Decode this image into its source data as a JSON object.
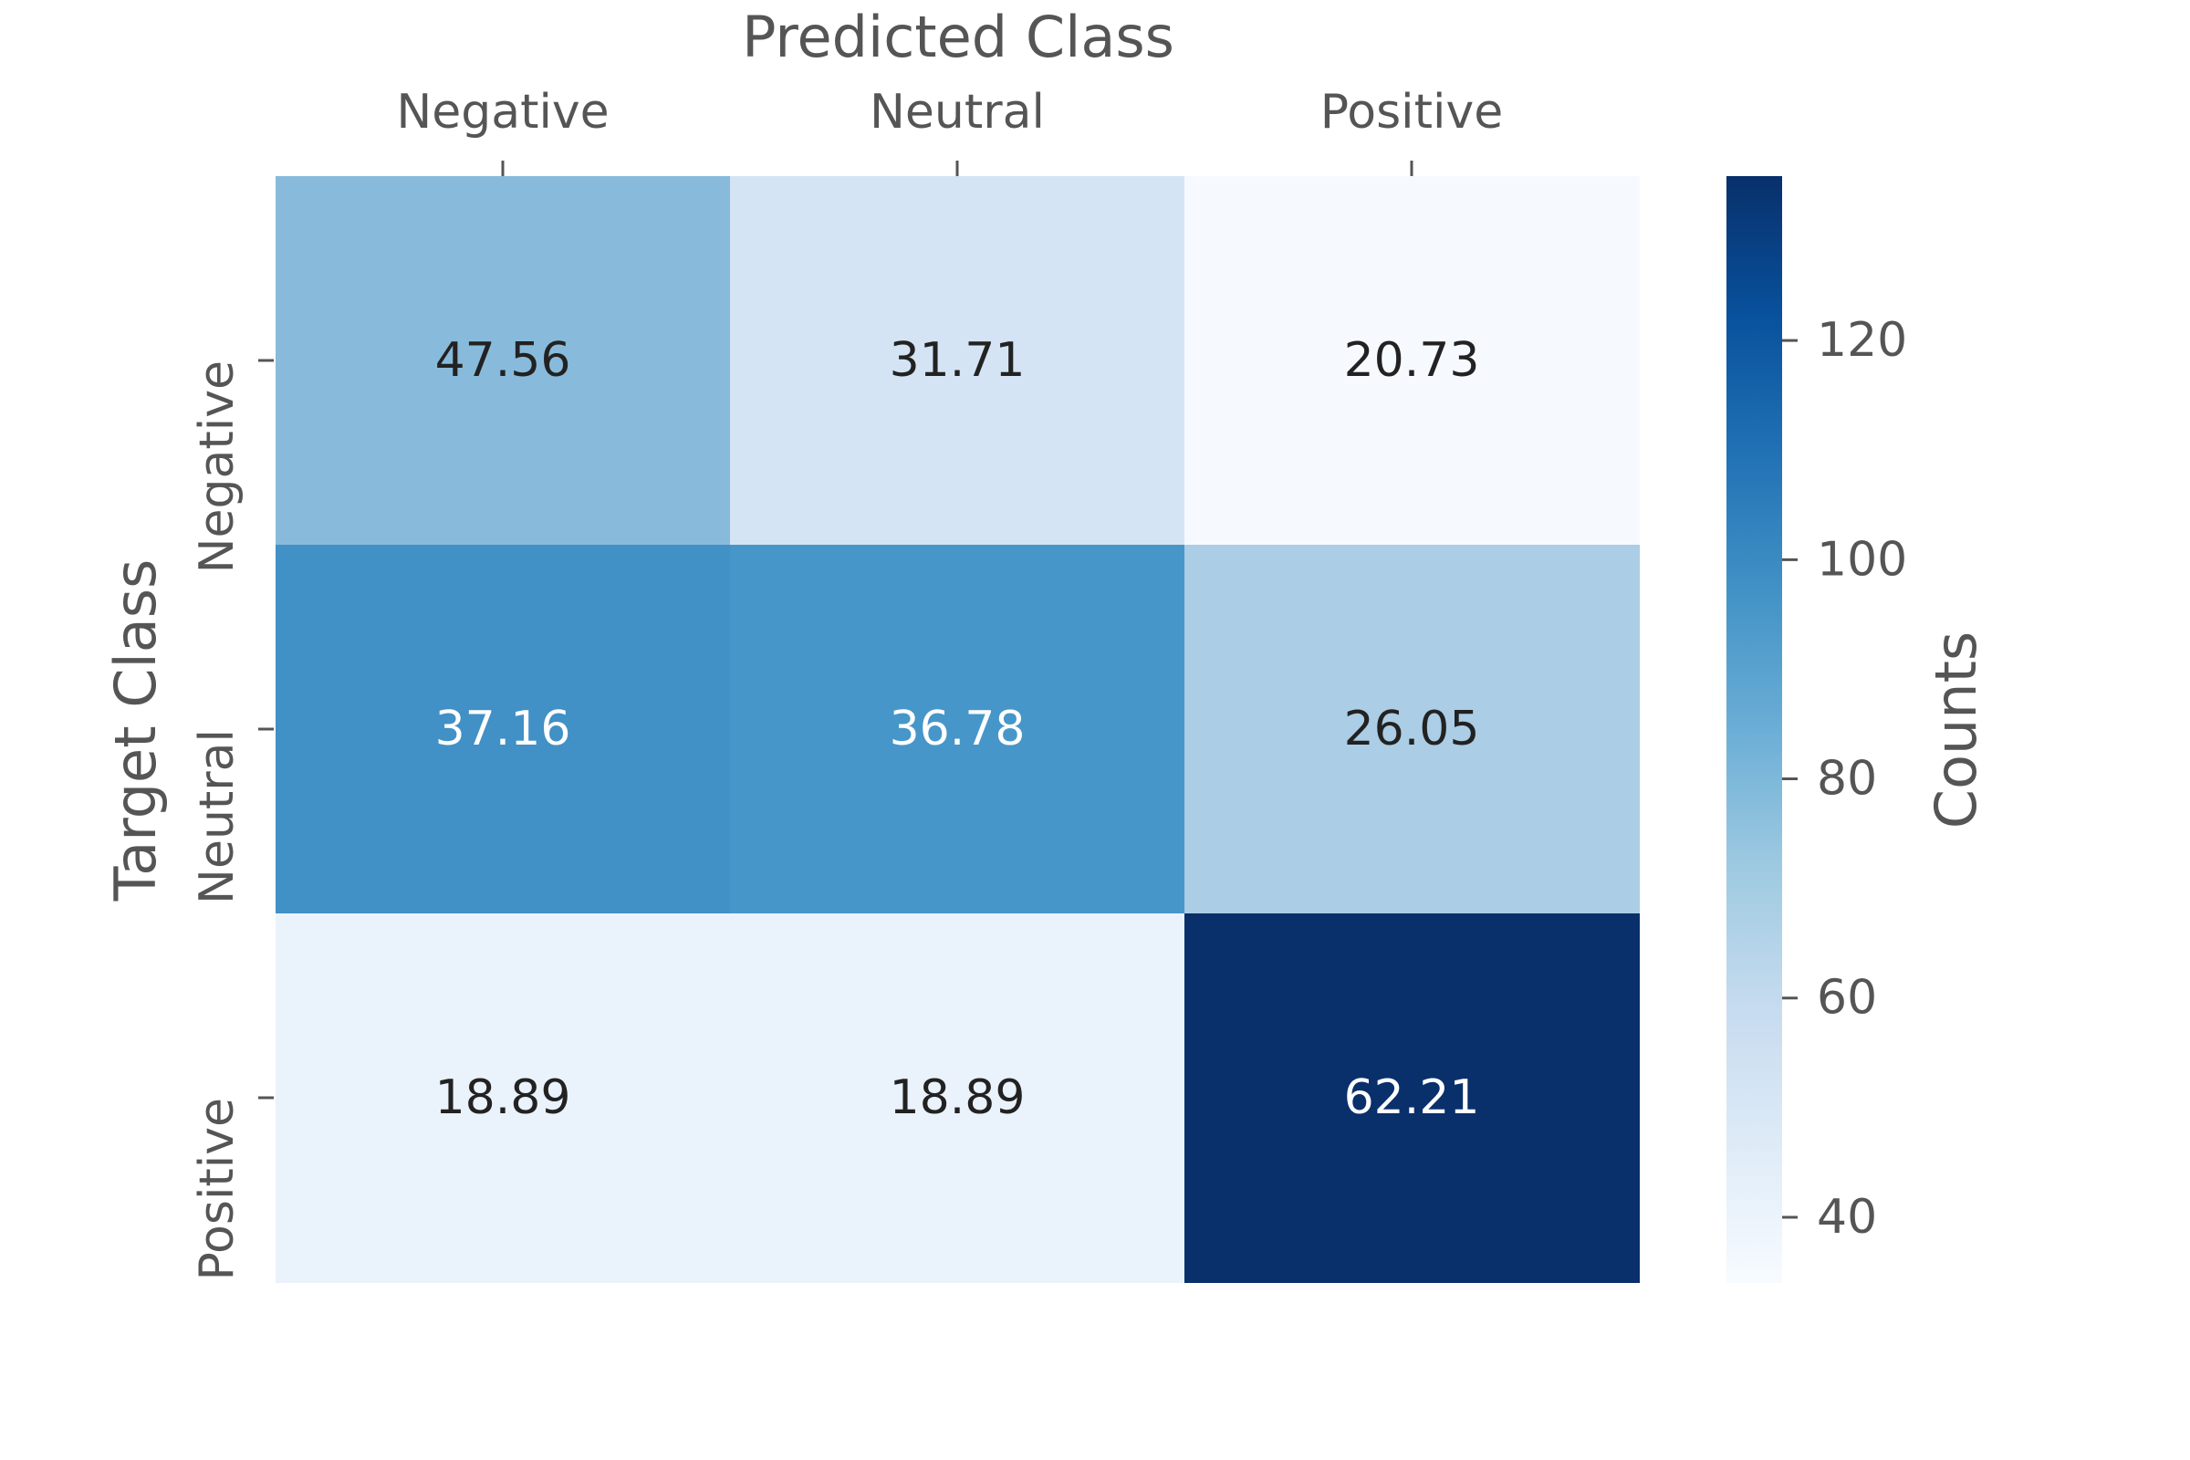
{
  "chart_data": {
    "type": "heatmap",
    "title": "",
    "xlabel": "Predicted Class",
    "ylabel": "Target Class",
    "x_categories": [
      "Negative",
      "Neutral",
      "Positive"
    ],
    "y_categories": [
      "Negative",
      "Neutral",
      "Positive"
    ],
    "values": [
      [
        47.56,
        31.71,
        20.73
      ],
      [
        37.16,
        36.78,
        26.05
      ],
      [
        18.89,
        18.89,
        62.21
      ]
    ],
    "cell_colors": [
      [
        "#88bbdb",
        "#d4e4f4",
        "#f6faff"
      ],
      [
        "#4190c6",
        "#4796c9",
        "#abcde5"
      ],
      [
        "#eaf2fb",
        "#eaf2fb",
        "#09306b"
      ]
    ],
    "cell_text_colors": [
      [
        "#222222",
        "#222222",
        "#222222"
      ],
      [
        "#ffffff",
        "#ffffff",
        "#222222"
      ],
      [
        "#222222",
        "#222222",
        "#ffffff"
      ]
    ],
    "colorbar": {
      "label": "Counts",
      "min": 34,
      "max": 135,
      "ticks": [
        40,
        60,
        80,
        100,
        120
      ],
      "tick_labels": [
        "40",
        "60",
        "80",
        "100",
        "120"
      ],
      "colormap": "Blues",
      "color_stops": [
        "#f7fbff",
        "#deebf7",
        "#c6dbef",
        "#9ecae1",
        "#6baed6",
        "#4292c6",
        "#2171b5",
        "#08519c",
        "#08306b"
      ]
    },
    "x_axis_position": "top",
    "grid": false
  }
}
